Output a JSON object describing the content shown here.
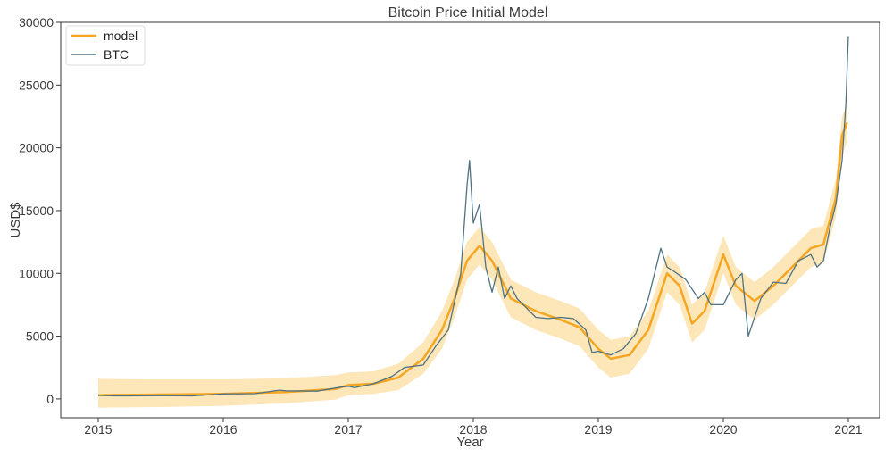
{
  "chart_data": {
    "type": "line",
    "title": "Bitcoin Price Initial Model",
    "xlabel": "Year",
    "ylabel": "USD$",
    "xlim": [
      2014.7,
      2021.25
    ],
    "ylim": [
      -1500,
      30000
    ],
    "x_ticks": [
      2015,
      2016,
      2017,
      2018,
      2019,
      2020,
      2021
    ],
    "x_tick_labels": [
      "2015",
      "2016",
      "2017",
      "2018",
      "2019",
      "2020",
      "2021"
    ],
    "y_ticks": [
      0,
      5000,
      10000,
      15000,
      20000,
      25000,
      30000
    ],
    "y_tick_labels": [
      "0",
      "5000",
      "10000",
      "15000",
      "20000",
      "25000",
      "30000"
    ],
    "grid": false,
    "legend_position": "top-left",
    "colors": {
      "model": "#f5a623",
      "band": "#fde6b8",
      "btc": "#4f7282"
    },
    "series": [
      {
        "name": "model",
        "type": "line",
        "x": [
          2015.0,
          2015.5,
          2016.0,
          2016.5,
          2016.9,
          2017.0,
          2017.2,
          2017.4,
          2017.6,
          2017.75,
          2017.85,
          2017.95,
          2018.05,
          2018.15,
          2018.3,
          2018.5,
          2018.7,
          2018.85,
          2019.0,
          2019.1,
          2019.25,
          2019.4,
          2019.55,
          2019.65,
          2019.75,
          2019.85,
          2020.0,
          2020.1,
          2020.25,
          2020.4,
          2020.55,
          2020.7,
          2020.8,
          2020.9,
          2020.95,
          2020.99
        ],
        "y": [
          300,
          350,
          400,
          550,
          800,
          1100,
          1200,
          1700,
          3200,
          5500,
          8000,
          11000,
          12200,
          11000,
          8000,
          7000,
          6300,
          5700,
          4000,
          3200,
          3500,
          5500,
          10000,
          9000,
          6000,
          7000,
          11500,
          9000,
          7800,
          9000,
          10500,
          12000,
          12300,
          16000,
          21000,
          22000
        ],
        "band_lower": [
          -700,
          -650,
          -550,
          -350,
          -50,
          300,
          400,
          700,
          2000,
          4000,
          6500,
          9500,
          10700,
          9500,
          6500,
          5500,
          4800,
          4200,
          2500,
          1700,
          2000,
          4000,
          8500,
          7500,
          4500,
          5500,
          10000,
          7500,
          6300,
          7500,
          9000,
          10500,
          10800,
          14500,
          19500,
          20500
        ],
        "band_upper": [
          1600,
          1550,
          1550,
          1650,
          1900,
          2100,
          2200,
          2800,
          4500,
          7000,
          9500,
          12500,
          13700,
          12500,
          9500,
          8500,
          7800,
          7200,
          5500,
          4700,
          5000,
          7000,
          11500,
          10500,
          7500,
          8500,
          13000,
          10500,
          9300,
          10500,
          12000,
          13500,
          13800,
          17500,
          22500,
          23500
        ]
      },
      {
        "name": "BTC",
        "type": "line",
        "x": [
          2015.0,
          2015.1,
          2015.25,
          2015.5,
          2015.75,
          2016.0,
          2016.25,
          2016.45,
          2016.5,
          2016.75,
          2016.95,
          2017.0,
          2017.05,
          2017.2,
          2017.35,
          2017.45,
          2017.6,
          2017.7,
          2017.8,
          2017.9,
          2017.95,
          2017.97,
          2018.0,
          2018.05,
          2018.1,
          2018.15,
          2018.2,
          2018.25,
          2018.3,
          2018.35,
          2018.4,
          2018.5,
          2018.6,
          2018.7,
          2018.8,
          2018.9,
          2018.95,
          2019.0,
          2019.1,
          2019.2,
          2019.3,
          2019.4,
          2019.45,
          2019.5,
          2019.55,
          2019.6,
          2019.7,
          2019.8,
          2019.85,
          2019.9,
          2020.0,
          2020.1,
          2020.15,
          2020.2,
          2020.3,
          2020.4,
          2020.5,
          2020.6,
          2020.7,
          2020.75,
          2020.8,
          2020.85,
          2020.9,
          2020.95,
          2020.98,
          2021.0
        ],
        "y": [
          300,
          250,
          240,
          260,
          240,
          400,
          420,
          700,
          650,
          620,
          950,
          1000,
          900,
          1200,
          1800,
          2500,
          2700,
          4200,
          5500,
          10000,
          17000,
          19000,
          14000,
          15500,
          10500,
          8500,
          10500,
          8000,
          9000,
          8000,
          7500,
          6500,
          6400,
          6500,
          6400,
          5500,
          3700,
          3800,
          3500,
          4000,
          5200,
          8000,
          10000,
          12000,
          10500,
          10200,
          9500,
          8000,
          8500,
          7500,
          7500,
          9500,
          10000,
          5000,
          8000,
          9300,
          9200,
          11000,
          11500,
          10500,
          11000,
          13500,
          15500,
          19000,
          23500,
          28900
        ]
      }
    ]
  }
}
